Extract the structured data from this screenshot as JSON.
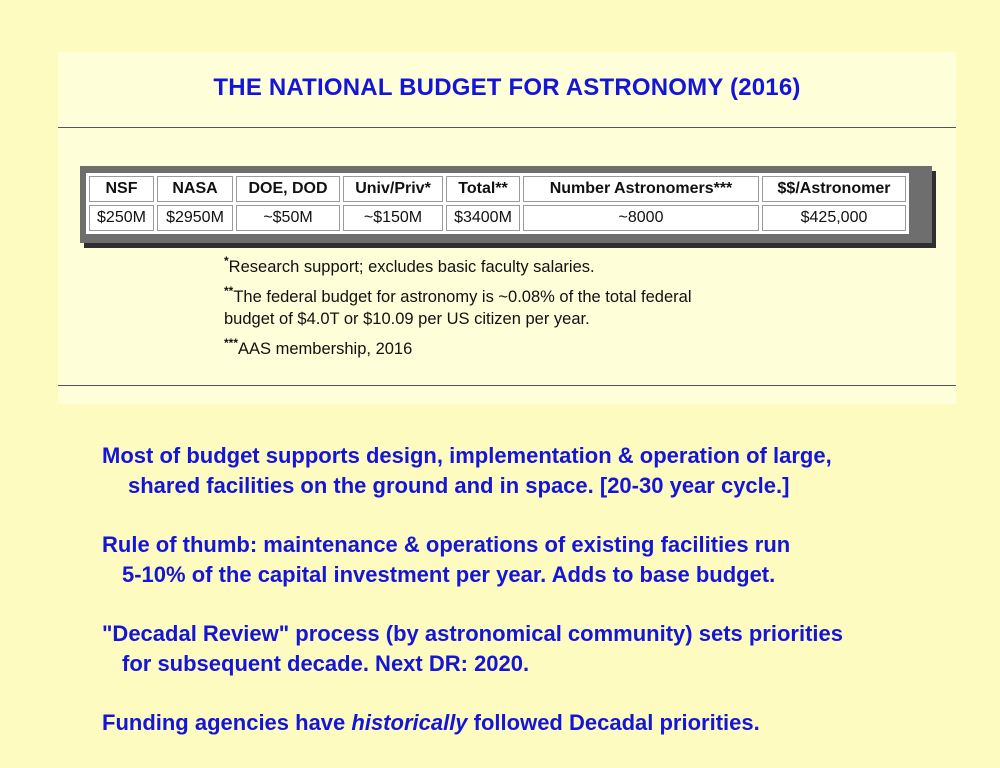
{
  "title": "THE NATIONAL BUDGET FOR ASTRONOMY (2016)",
  "table": {
    "headers": [
      "NSF",
      "NASA",
      "DOE, DOD",
      "Univ/Priv*",
      "Total**",
      "Number Astronomers***",
      "$$/Astronomer"
    ],
    "row": [
      "$250M",
      "$2950M",
      "~$50M",
      "~$150M",
      "$3400M",
      "~8000",
      "$425,000"
    ]
  },
  "notes": {
    "n1_mark": "*",
    "n1_text": "Research support; excludes basic faculty salaries.",
    "n2_mark": "**",
    "n2_text_a": "The federal budget for astronomy is ~0.08% of the total federal",
    "n2_text_b": "budget of $4.0T or $10.09 per US citizen per year.",
    "n3_mark": "***",
    "n3_text": "AAS membership, 2016"
  },
  "bullets": {
    "b1_line1": "Most of budget supports design, implementation & operation of large,",
    "b1_line2": "shared facilities on the ground and in space.  [20-30 year cycle.]",
    "b2_line1": "Rule of thumb:  maintenance & operations of existing facilities run",
    "b2_line2": "5-10% of the capital investment per year.   Adds to base budget.",
    "b3_line1": "\"Decadal Review\" process (by astronomical community) sets priorities",
    "b3_line2": "for subsequent decade.  Next DR: 2020.",
    "b4_pre": "Funding agencies have ",
    "b4_em": "historically",
    "b4_post": " followed Decadal priorities."
  },
  "colors": {
    "background": "#fdfbc0",
    "panel": "#fefed8",
    "accent_blue": "#1515d8"
  }
}
